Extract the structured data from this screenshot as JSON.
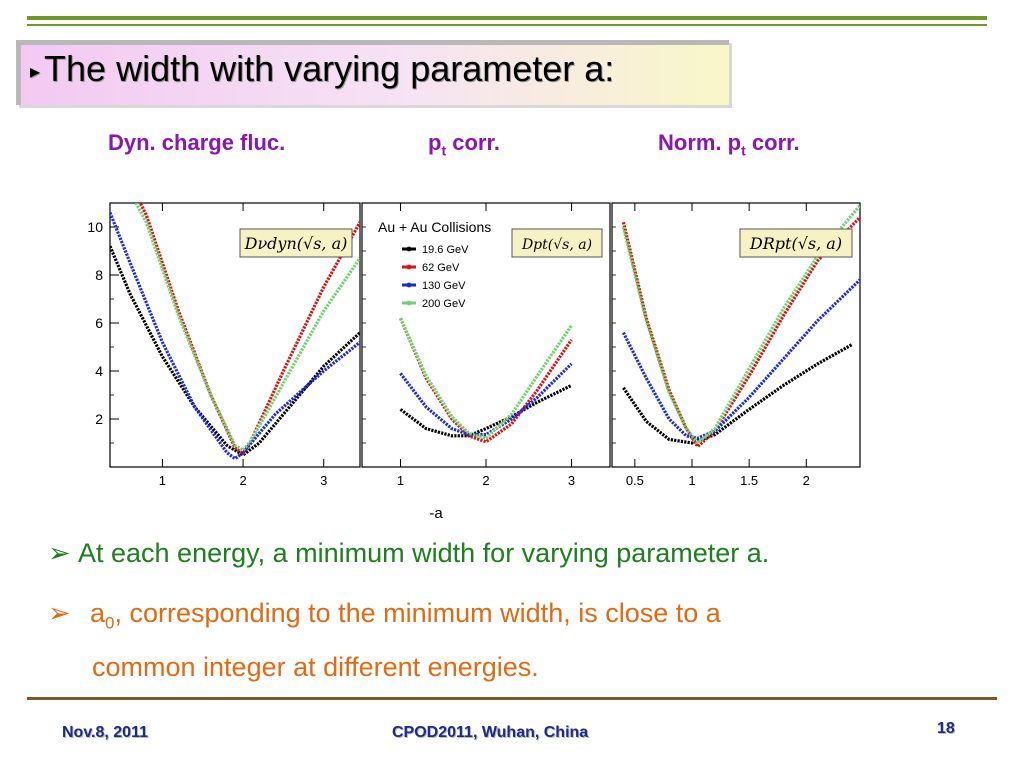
{
  "slide": {
    "title": "The width with varying parameter a:",
    "bullet_glyph": "▸"
  },
  "headers": {
    "h1": "Dyn. charge fluc.",
    "h2_main": "p",
    "h2_sub": "t",
    "h2_rest": " corr.",
    "h3_main": "Norm. p",
    "h3_sub": "t",
    "h3_rest": " corr."
  },
  "figure": {
    "legend_title": "Au + Au Collisions",
    "shared_xlabel": "-a"
  },
  "chart_data": [
    {
      "type": "line",
      "formula_label": "Dνdyn(√s, a)",
      "x_ticks": [
        "1",
        "2",
        "3"
      ],
      "y_ticks": [
        "2",
        "4",
        "6",
        "8",
        "10"
      ],
      "xlim": [
        0.35,
        3.45
      ],
      "ylim": [
        0,
        11.0
      ],
      "series": [
        {
          "name": "19.6 GeV",
          "color": "#000000",
          "x": [
            0.35,
            0.6,
            1.0,
            1.4,
            1.8,
            2.0,
            2.2,
            2.6,
            3.0,
            3.45
          ],
          "y": [
            9.2,
            7.2,
            4.6,
            2.5,
            0.9,
            0.5,
            1.0,
            2.6,
            4.2,
            5.6
          ]
        },
        {
          "name": "62 GeV",
          "color": "#e01010",
          "x": [
            0.35,
            0.8,
            1.2,
            1.6,
            1.9,
            2.0,
            2.1,
            2.5,
            3.0,
            3.45
          ],
          "y": [
            13.5,
            10.5,
            6.5,
            3.0,
            0.8,
            0.55,
            1.1,
            4.0,
            7.5,
            10.2
          ]
        },
        {
          "name": "130 GeV",
          "color": "#1a2adc",
          "x": [
            0.35,
            0.6,
            1.0,
            1.4,
            1.8,
            1.9,
            2.0,
            2.4,
            3.0,
            3.45
          ],
          "y": [
            10.6,
            8.5,
            5.2,
            2.5,
            0.6,
            0.35,
            0.6,
            2.2,
            4.0,
            5.2
          ]
        },
        {
          "name": "200 GeV",
          "color": "#6ed36e",
          "x": [
            0.35,
            0.8,
            1.2,
            1.6,
            1.9,
            2.0,
            2.1,
            2.5,
            3.0,
            3.45
          ],
          "y": [
            13.0,
            10.2,
            6.3,
            3.0,
            0.9,
            0.7,
            1.1,
            3.5,
            6.5,
            8.7
          ]
        }
      ]
    },
    {
      "type": "line",
      "formula_label": "Dpt(√s, a)",
      "x_ticks": [
        "1",
        "2",
        "3"
      ],
      "y_ticks": [],
      "xlim": [
        0.55,
        3.45
      ],
      "ylim": [
        0,
        11.0
      ],
      "series": [
        {
          "name": "19.6 GeV",
          "color": "#000000",
          "x": [
            1.0,
            1.3,
            1.6,
            1.8,
            2.0,
            2.3,
            2.6,
            3.0
          ],
          "y": [
            2.4,
            1.6,
            1.3,
            1.3,
            1.6,
            2.1,
            2.7,
            3.4
          ]
        },
        {
          "name": "62 GeV",
          "color": "#e01010",
          "x": [
            1.0,
            1.3,
            1.6,
            1.8,
            2.0,
            2.3,
            2.6,
            3.0
          ],
          "y": [
            6.2,
            3.7,
            2.0,
            1.3,
            1.05,
            1.8,
            3.2,
            5.3
          ]
        },
        {
          "name": "130 GeV",
          "color": "#1a2adc",
          "x": [
            1.0,
            1.3,
            1.6,
            1.8,
            2.0,
            2.3,
            2.6,
            3.0
          ],
          "y": [
            3.9,
            2.5,
            1.6,
            1.35,
            1.35,
            2.0,
            2.9,
            4.3
          ]
        },
        {
          "name": "200 GeV",
          "color": "#6ed36e",
          "x": [
            1.0,
            1.3,
            1.6,
            1.8,
            2.0,
            2.3,
            2.6,
            3.0
          ],
          "y": [
            6.2,
            3.8,
            2.1,
            1.4,
            1.2,
            2.2,
            3.8,
            5.9
          ]
        }
      ]
    },
    {
      "type": "line",
      "formula_label": "DRpt(√s, a)",
      "x_ticks": [
        "0.5",
        "1",
        "1.5",
        "2"
      ],
      "y_ticks": [],
      "xlim": [
        0.3,
        2.47
      ],
      "ylim": [
        0,
        11.0
      ],
      "series": [
        {
          "name": "19.6 GeV",
          "color": "#000000",
          "x": [
            0.4,
            0.6,
            0.8,
            1.0,
            1.2,
            1.5,
            1.8,
            2.1,
            2.4
          ],
          "y": [
            3.3,
            1.9,
            1.15,
            1.0,
            1.35,
            2.4,
            3.4,
            4.3,
            5.1
          ]
        },
        {
          "name": "62 GeV",
          "color": "#e01010",
          "x": [
            0.4,
            0.6,
            0.8,
            0.95,
            1.05,
            1.2,
            1.5,
            1.8,
            2.1,
            2.47
          ],
          "y": [
            10.2,
            6.2,
            3.2,
            1.6,
            0.85,
            1.5,
            3.8,
            6.3,
            8.6,
            10.4
          ]
        },
        {
          "name": "130 GeV",
          "color": "#1a2adc",
          "x": [
            0.4,
            0.6,
            0.8,
            0.95,
            1.05,
            1.2,
            1.5,
            1.8,
            2.1,
            2.47
          ],
          "y": [
            5.6,
            3.7,
            2.0,
            1.3,
            1.2,
            1.5,
            2.9,
            4.5,
            6.1,
            7.8
          ]
        },
        {
          "name": "200 GeV",
          "color": "#6ed36e",
          "x": [
            0.4,
            0.6,
            0.8,
            0.95,
            1.05,
            1.2,
            1.5,
            1.8,
            2.1,
            2.47
          ],
          "y": [
            10.0,
            6.1,
            3.1,
            1.6,
            1.0,
            1.6,
            4.1,
            6.6,
            8.8,
            10.9
          ]
        }
      ]
    }
  ],
  "bullets": {
    "b1": "At each energy, a minimum width for varying parameter a.",
    "b2_pre": "a",
    "b2_sub": "0",
    "b2_post": ", corresponding to the minimum width, is close to a",
    "b2_cont": "common integer at different energies.",
    "arrow_glyph": "➢"
  },
  "footer": {
    "date": "Nov.8, 2011",
    "venue": "CPOD2011, Wuhan, China",
    "page": "18"
  }
}
